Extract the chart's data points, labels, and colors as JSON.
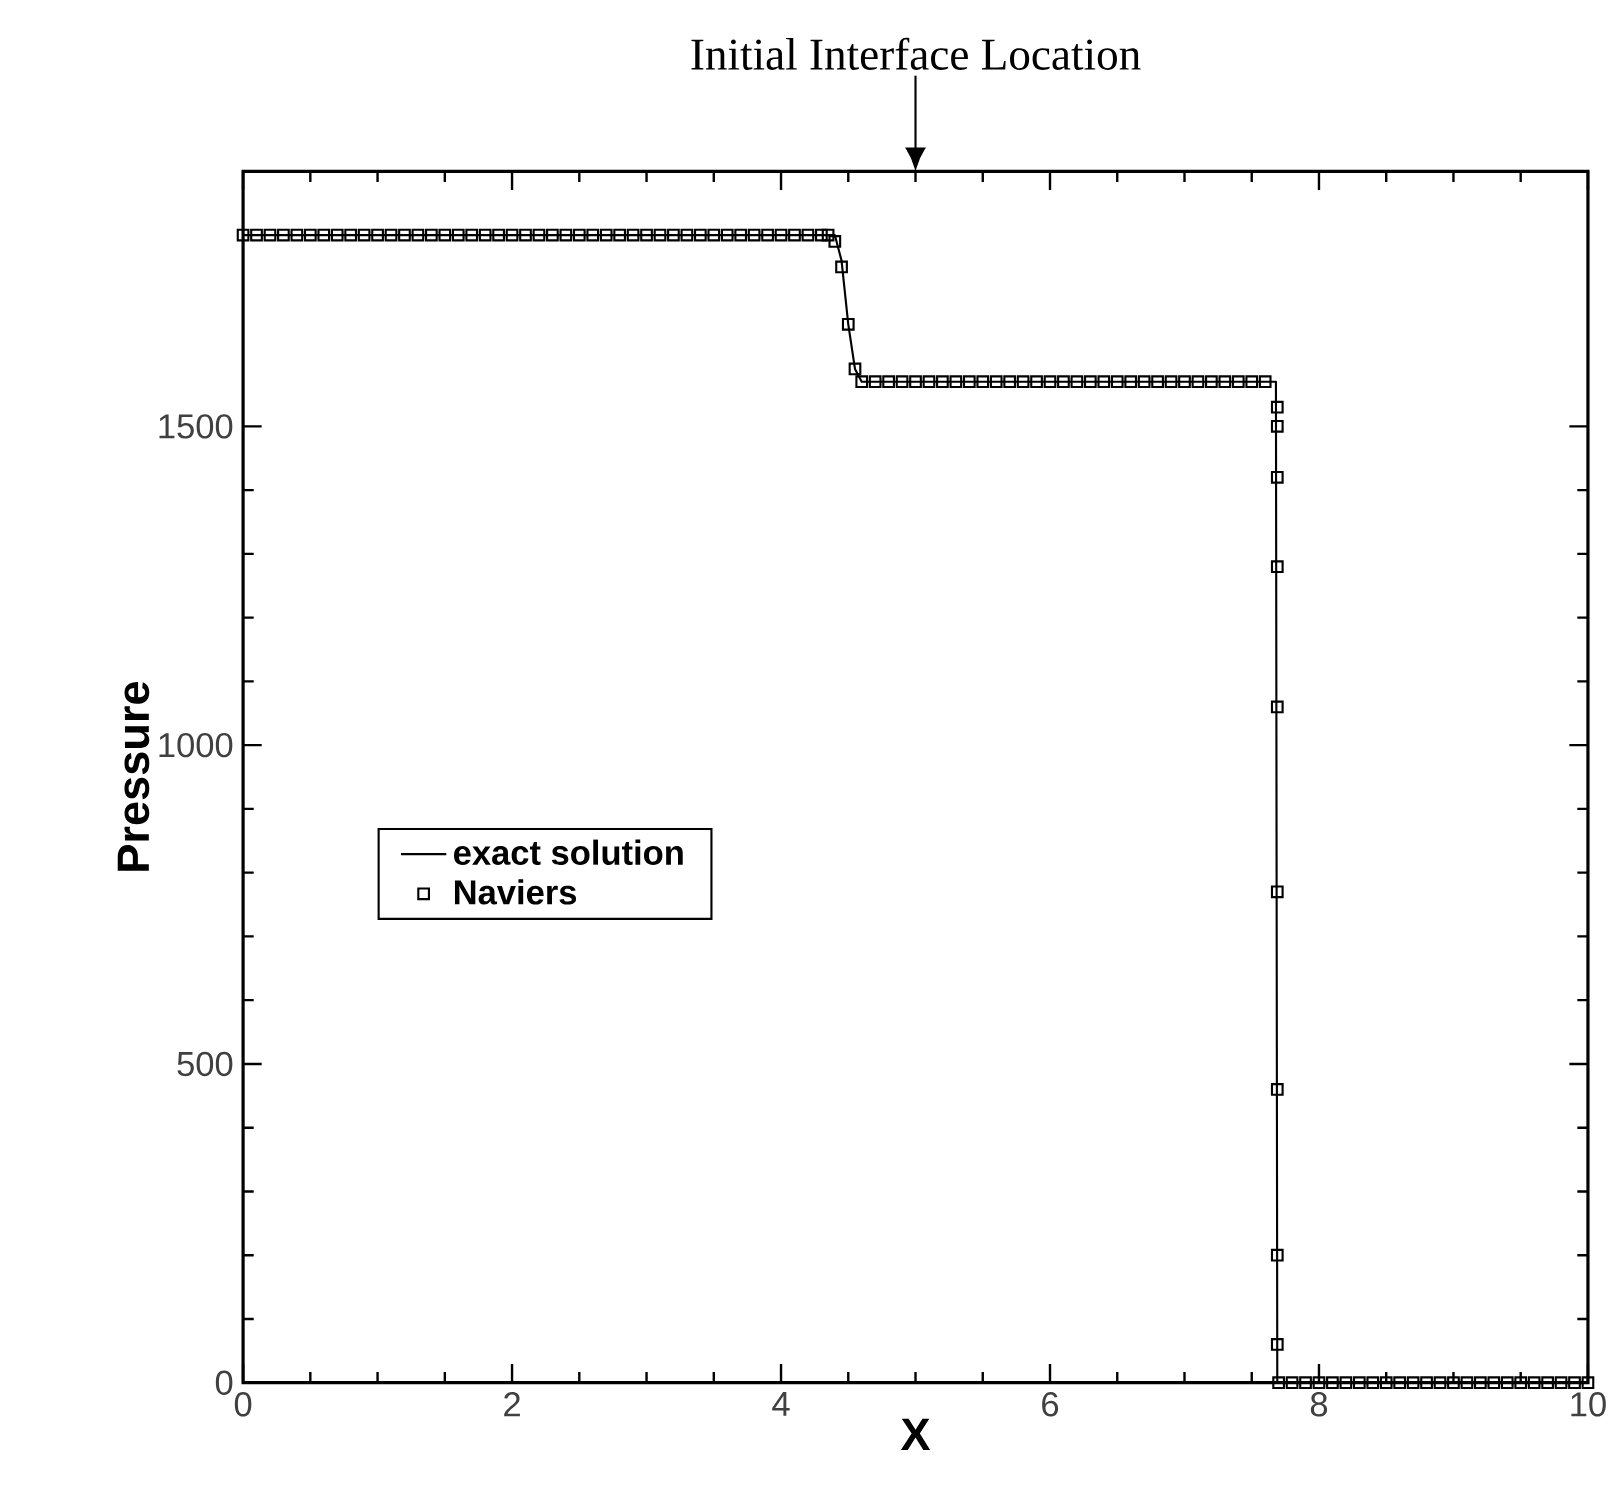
{
  "chart_data": {
    "type": "line",
    "xlabel": "X",
    "ylabel": "Pressure",
    "xlim": [
      0,
      10
    ],
    "ylim": [
      0,
      1900
    ],
    "xticks": [
      0,
      2,
      4,
      6,
      8,
      10
    ],
    "yticks": [
      0,
      500,
      1000,
      1500
    ],
    "legend": "left",
    "grid": false,
    "annotations": [
      "Initial Interface Location"
    ],
    "series": [
      {
        "name": "exact solution",
        "type": "line",
        "color": "#000000",
        "marker": "none",
        "line_style": "solid",
        "x": [
          0,
          4.4,
          4.45,
          4.5,
          4.55,
          4.6,
          7.68,
          7.69,
          10
        ],
        "values": [
          1800,
          1800,
          1760,
          1660,
          1590,
          1570,
          1570,
          0,
          0
        ]
      },
      {
        "name": "Naviers",
        "type": "scatter",
        "color": "#000000",
        "marker": "square",
        "x": [
          0,
          0.1,
          0.2,
          0.3,
          0.4,
          0.5,
          0.6,
          0.7,
          0.8,
          0.9,
          1,
          1.1,
          1.2,
          1.3,
          1.4,
          1.5,
          1.6,
          1.7,
          1.8,
          1.9,
          2,
          2.1,
          2.2,
          2.3,
          2.4,
          2.5,
          2.6,
          2.7,
          2.8,
          2.9,
          3,
          3.1,
          3.2,
          3.3,
          3.4,
          3.5,
          3.6,
          3.7,
          3.8,
          3.9,
          4,
          4.1,
          4.2,
          4.3,
          4.35,
          4.4,
          4.45,
          4.5,
          4.55,
          4.6,
          4.7,
          4.8,
          4.9,
          5,
          5.1,
          5.2,
          5.3,
          5.4,
          5.5,
          5.6,
          5.7,
          5.8,
          5.9,
          6,
          6.1,
          6.2,
          6.3,
          6.4,
          6.5,
          6.6,
          6.7,
          6.8,
          6.9,
          7,
          7.1,
          7.2,
          7.3,
          7.4,
          7.5,
          7.6,
          7.69,
          7.69,
          7.69,
          7.69,
          7.69,
          7.69,
          7.69,
          7.69,
          7.69,
          7.7,
          7.8,
          7.9,
          8,
          8.1,
          8.2,
          8.3,
          8.4,
          8.5,
          8.6,
          8.7,
          8.8,
          8.9,
          9,
          9.1,
          9.2,
          9.3,
          9.4,
          9.5,
          9.6,
          9.7,
          9.8,
          9.9,
          10
        ],
        "values": [
          1800,
          1800,
          1800,
          1800,
          1800,
          1800,
          1800,
          1800,
          1800,
          1800,
          1800,
          1800,
          1800,
          1800,
          1800,
          1800,
          1800,
          1800,
          1800,
          1800,
          1800,
          1800,
          1800,
          1800,
          1800,
          1800,
          1800,
          1800,
          1800,
          1800,
          1800,
          1800,
          1800,
          1800,
          1800,
          1800,
          1800,
          1800,
          1800,
          1800,
          1800,
          1800,
          1800,
          1800,
          1800,
          1790,
          1750,
          1660,
          1590,
          1570,
          1570,
          1570,
          1570,
          1570,
          1570,
          1570,
          1570,
          1570,
          1570,
          1570,
          1570,
          1570,
          1570,
          1570,
          1570,
          1570,
          1570,
          1570,
          1570,
          1570,
          1570,
          1570,
          1570,
          1570,
          1570,
          1570,
          1570,
          1570,
          1570,
          1570,
          1530,
          1500,
          1420,
          1280,
          1060,
          770,
          460,
          200,
          60,
          0,
          0,
          0,
          0,
          0,
          0,
          0,
          0,
          0,
          0,
          0,
          0,
          0,
          0,
          0,
          0,
          0,
          0,
          0,
          0,
          0,
          0,
          0,
          0
        ]
      }
    ]
  }
}
